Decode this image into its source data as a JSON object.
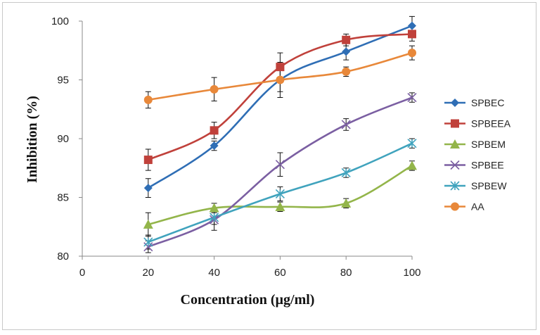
{
  "chart_data": {
    "type": "line",
    "title": "",
    "xlabel": "Concentration  (µg/ml)",
    "ylabel": "Inhibition  (%)",
    "xlim": [
      0,
      100
    ],
    "ylim": [
      80,
      100
    ],
    "x_ticks": [
      "0",
      "20",
      "40",
      "60",
      "80",
      "100"
    ],
    "y_ticks": [
      "80",
      "85",
      "90",
      "95",
      "100"
    ],
    "grid": false,
    "legend_position": "right",
    "x": [
      20,
      40,
      60,
      80,
      100
    ],
    "series": [
      {
        "name": "SPBEC",
        "color": "#2f6eb5",
        "marker": "diamond",
        "values": [
          85.8,
          89.4,
          95.0,
          97.4,
          99.6
        ],
        "errors": [
          0.8,
          0.4,
          1.5,
          0.7,
          0.8
        ]
      },
      {
        "name": "SPBEEA",
        "color": "#c0413b",
        "marker": "square",
        "values": [
          88.2,
          90.7,
          96.1,
          98.4,
          98.9
        ],
        "errors": [
          0.9,
          0.7,
          1.2,
          0.5,
          0.6
        ]
      },
      {
        "name": "SPBEM",
        "color": "#93b54a",
        "marker": "triangle",
        "values": [
          82.7,
          84.1,
          84.2,
          84.5,
          87.7
        ],
        "errors": [
          1.0,
          0.4,
          0.4,
          0.4,
          0.4
        ]
      },
      {
        "name": "SPBEE",
        "color": "#7b5fa2",
        "marker": "x",
        "values": [
          80.8,
          83.1,
          87.8,
          91.2,
          93.5
        ],
        "errors": [
          0.5,
          0.9,
          1.0,
          0.5,
          0.4
        ]
      },
      {
        "name": "SPBEW",
        "color": "#40a3bd",
        "marker": "star",
        "values": [
          81.2,
          83.3,
          85.3,
          87.1,
          89.6
        ],
        "errors": [
          0.6,
          0.6,
          0.6,
          0.4,
          0.4
        ]
      },
      {
        "name": "AA",
        "color": "#e8883a",
        "marker": "circle",
        "values": [
          93.3,
          94.2,
          95.0,
          95.7,
          97.3
        ],
        "errors": [
          0.7,
          1.0,
          1.0,
          0.4,
          0.6
        ]
      }
    ]
  }
}
